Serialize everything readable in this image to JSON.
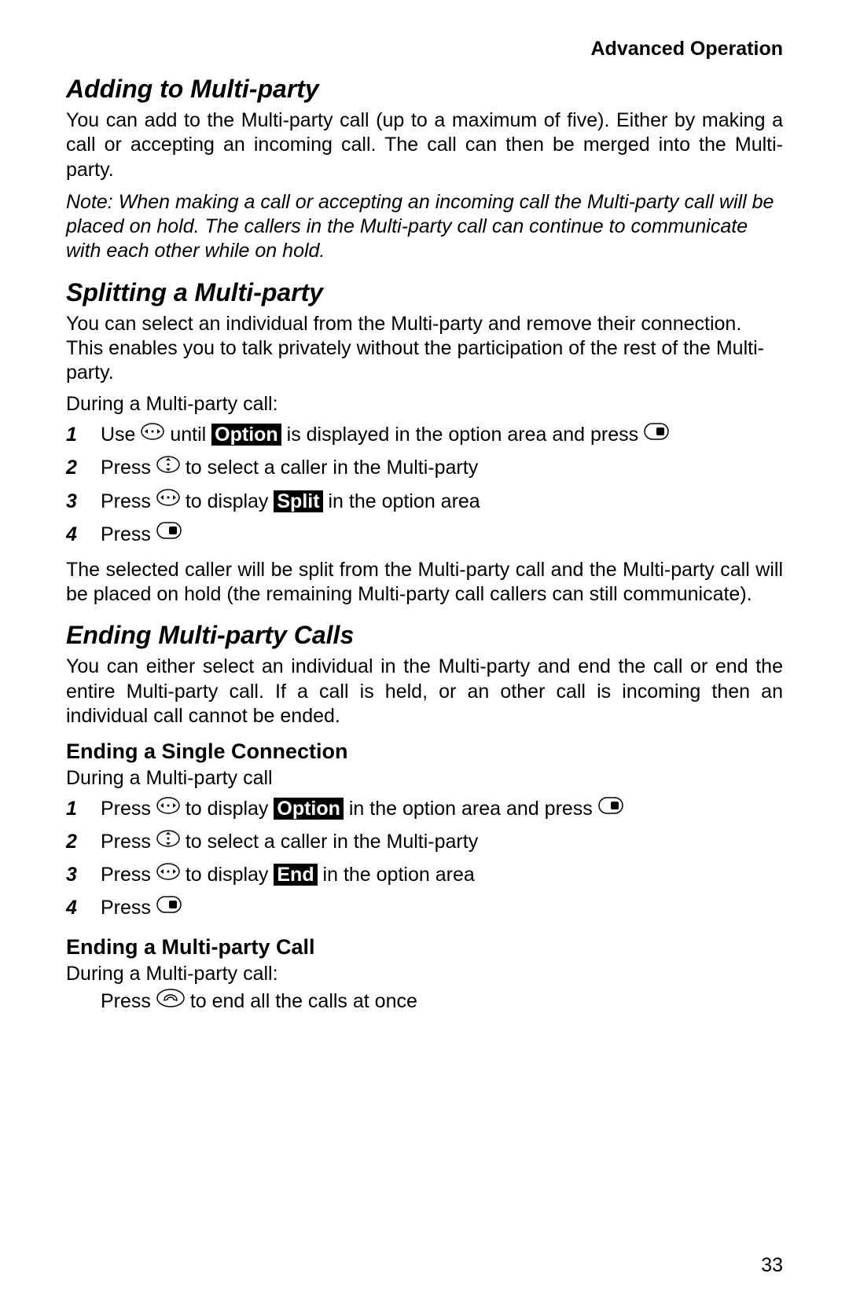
{
  "header": {
    "title": "Advanced Operation"
  },
  "page_number": "33",
  "icons": {
    "nav_lr": "<svg width='30' height='22' viewBox='0 0 30 22'><ellipse cx='15' cy='11' rx='14' ry='10' fill='none' stroke='#000' stroke-width='1.5'/><circle cx='15' cy='11' r='1.5' fill='#000'/><path d='M5 11 L9 8 L9 14 Z' fill='#000'/><path d='M25 11 L21 8 L21 14 Z' fill='#000'/></svg>",
    "nav_ud": "<svg width='30' height='22' viewBox='0 0 30 22'><ellipse cx='15' cy='11' rx='14' ry='10' fill='none' stroke='#000' stroke-width='1.5'/><circle cx='15' cy='11' r='1.5' fill='#000'/><path d='M15 2.5 L12 6 L18 6 Z' fill='#000'/><path d='M15 19.5 L12 16 L18 16 Z' fill='#000'/></svg>",
    "select": "<svg width='32' height='22' viewBox='0 0 32 22'><rect x='1' y='1' width='30' height='20' rx='10' ry='10' fill='none' stroke='#000' stroke-width='1.5'/><rect x='16' y='6' width='10' height='10' rx='2' fill='#000'/></svg>",
    "end": "<svg width='36' height='24' viewBox='0 0 36 24'><ellipse cx='18' cy='12' rx='17' ry='11' fill='none' stroke='#000' stroke-width='1.5'/><path d='M10 15 C10 10 14 8 18 8 C22 8 26 10 26 15 L22 14 C22 12 20 11 18 11 C16 11 14 12 14 14 Z' fill='none' stroke='#000' stroke-width='1.4'/></svg>"
  },
  "sections": {
    "adding": {
      "title": "Adding to Multi-party",
      "body": "You can add to the Multi-party call (up to a maximum of five). Either by making a call or accepting an incoming call. The call can then be merged into the Multi-party.",
      "note": "Note: When making a call or accepting an incoming call the Multi-party call will be placed on hold. The callers in the Multi-party call can continue to communicate with each other while on hold."
    },
    "splitting": {
      "title": "Splitting a Multi-party",
      "body": "You can select an individual from the Multi-party and remove their connection. This enables you to talk privately without the participation of the rest of the Multi-party.",
      "lead": "During a Multi-party call:",
      "step1_a": "Use ",
      "step1_b": " until ",
      "step1_kw": "Option",
      "step1_c": " is displayed in the option area and press ",
      "step2_a": "Press ",
      "step2_b": " to select a caller in the Multi-party",
      "step3_a": "Press ",
      "step3_b": " to display ",
      "step3_kw": "Split",
      "step3_c": " in the option area",
      "step4_a": "Press ",
      "after": "The selected caller will be split from the Multi-party call and the Multi-party call will be placed on hold (the remaining Multi-party call callers can still communicate)."
    },
    "ending": {
      "title": "Ending Multi-party Calls",
      "body": "You can either select an individual in the Multi-party and end the call or end the entire Multi-party call. If a call is held, or an other call is incoming then an individual call cannot be ended.",
      "single": {
        "title": "Ending a Single Connection",
        "lead": "During a Multi-party call",
        "step1_a": "Press ",
        "step1_b": " to display ",
        "step1_kw": "Option",
        "step1_c": " in the option area and press ",
        "step2_a": "Press ",
        "step2_b": " to select a caller in the Multi-party",
        "step3_a": "Press ",
        "step3_b": " to display ",
        "step3_kw": "End",
        "step3_c": " in the option area",
        "step4_a": "Press "
      },
      "all": {
        "title": "Ending a Multi-party Call",
        "lead": "During a Multi-party call:",
        "line_a": "Press ",
        "line_b": " to end all the calls at once"
      }
    }
  }
}
